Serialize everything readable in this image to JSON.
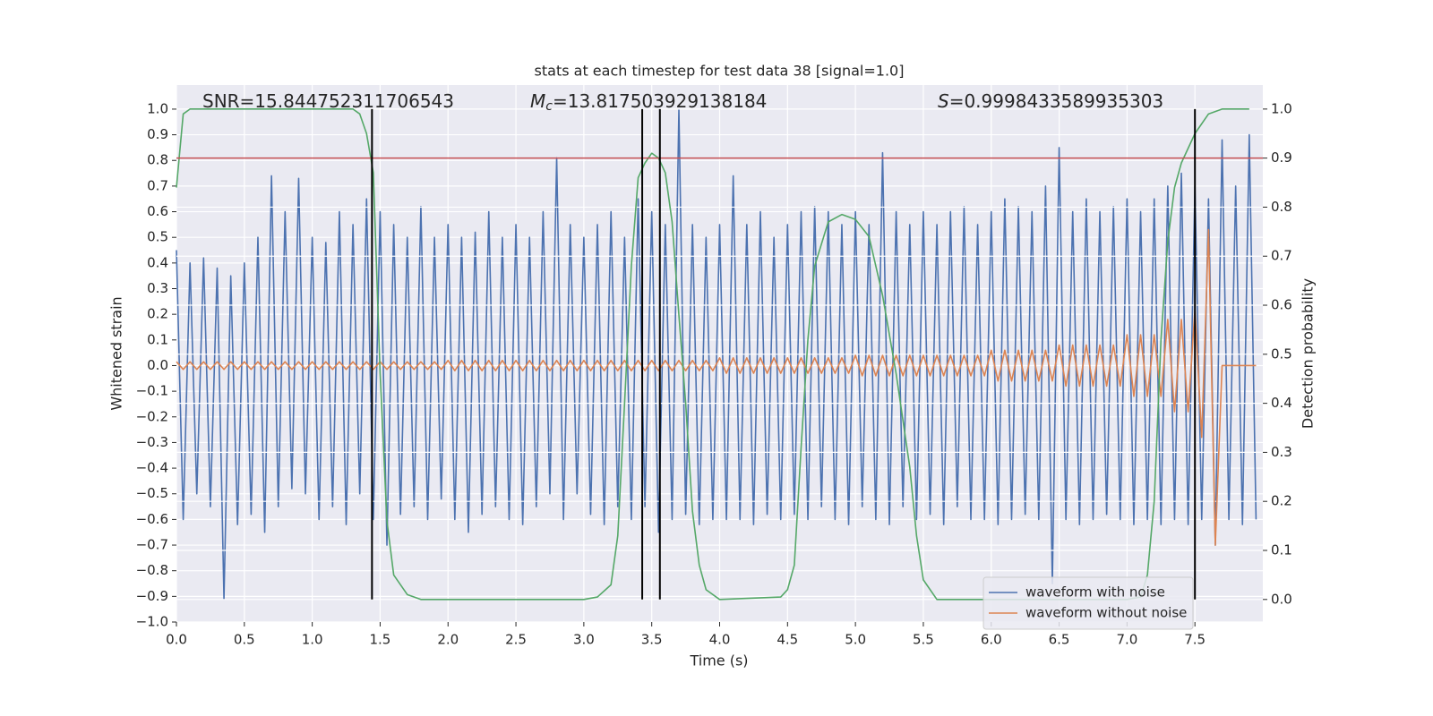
{
  "chart_data": {
    "type": "line",
    "title": "stats at each timestep for test data 38 [signal=1.0]",
    "xlabel": "Time (s)",
    "ylabel": "Whitened strain",
    "y2label": "Detection probability",
    "annotations": [
      {
        "text": "SNR=15.844752311706543"
      },
      {
        "symbol": "M",
        "subscript": "c",
        "text": "=13.817503929138184"
      },
      {
        "symbol": "S",
        "text": "=0.9998433589935303"
      }
    ],
    "xlim": [
      0,
      8
    ],
    "ylim": [
      -1,
      1.094
    ],
    "y2lim": [
      -0.046,
      1.049
    ],
    "xticks": [
      {
        "value": 0,
        "label": "0.0"
      },
      0.5,
      {
        "value": 1,
        "label": "1.0"
      },
      1.5,
      {
        "value": 2,
        "label": "2.0"
      },
      2.5,
      {
        "value": 3,
        "label": "3.0"
      },
      3.5,
      {
        "value": 4,
        "label": "4.0"
      },
      4.5,
      {
        "value": 5,
        "label": "5.0"
      },
      5.5,
      {
        "value": 6,
        "label": "6.0"
      },
      6.5,
      {
        "value": 7,
        "label": "7.0"
      },
      7.5
    ],
    "yticks": [
      {
        "value": -1,
        "label": "−1.0"
      },
      {
        "value": -0.9,
        "label": "−0.9"
      },
      {
        "value": -0.8,
        "label": "−0.8"
      },
      {
        "value": -0.7,
        "label": "−0.7"
      },
      {
        "value": -0.6,
        "label": "−0.6"
      },
      {
        "value": -0.5,
        "label": "−0.5"
      },
      {
        "value": -0.4,
        "label": "−0.4"
      },
      {
        "value": -0.3,
        "label": "−0.3"
      },
      {
        "value": -0.2,
        "label": "−0.2"
      },
      {
        "value": -0.1,
        "label": "−0.1"
      },
      {
        "value": 0,
        "label": "0.0"
      },
      0.1,
      0.2,
      0.3,
      0.4,
      0.5,
      0.6,
      0.7,
      0.8,
      0.9,
      {
        "value": 1,
        "label": "1.0"
      }
    ],
    "y2ticks": [
      {
        "value": 0,
        "label": "0.0"
      },
      0.1,
      0.2,
      0.3,
      0.4,
      0.5,
      0.6,
      0.7,
      0.8,
      0.9,
      {
        "value": 1,
        "label": "1.0"
      }
    ],
    "grid": true,
    "legend": "lower right",
    "x": [
      0,
      0.05,
      0.1,
      0.15,
      0.2,
      0.25,
      0.3,
      0.35,
      0.4,
      0.45,
      0.5,
      0.55,
      0.6,
      0.65,
      0.7,
      0.75,
      0.8,
      0.85,
      0.9,
      0.95,
      1,
      1.05,
      1.1,
      1.15,
      1.2,
      1.25,
      1.3,
      1.35,
      1.4,
      1.45,
      1.5,
      1.55,
      1.6,
      1.65,
      1.7,
      1.75,
      1.8,
      1.85,
      1.9,
      1.95,
      2,
      2.05,
      2.1,
      2.15,
      2.2,
      2.25,
      2.3,
      2.35,
      2.4,
      2.45,
      2.5,
      2.55,
      2.6,
      2.65,
      2.7,
      2.75,
      2.8,
      2.85,
      2.9,
      2.95,
      3,
      3.05,
      3.1,
      3.15,
      3.2,
      3.25,
      3.3,
      3.35,
      3.4,
      3.45,
      3.5,
      3.55,
      3.6,
      3.65,
      3.7,
      3.75,
      3.8,
      3.85,
      3.9,
      3.95,
      4,
      4.05,
      4.1,
      4.15,
      4.2,
      4.25,
      4.3,
      4.35,
      4.4,
      4.45,
      4.5,
      4.55,
      4.6,
      4.65,
      4.7,
      4.75,
      4.8,
      4.85,
      4.9,
      4.95,
      5,
      5.05,
      5.1,
      5.15,
      5.2,
      5.25,
      5.3,
      5.35,
      5.4,
      5.45,
      5.5,
      5.55,
      5.6,
      5.65,
      5.7,
      5.75,
      5.8,
      5.85,
      5.9,
      5.95,
      6,
      6.05,
      6.1,
      6.15,
      6.2,
      6.25,
      6.3,
      6.35,
      6.4,
      6.45,
      6.5,
      6.55,
      6.6,
      6.65,
      6.7,
      6.75,
      6.8,
      6.85,
      6.9,
      6.95,
      7,
      7.05,
      7.1,
      7.15,
      7.2,
      7.25,
      7.3,
      7.35,
      7.4,
      7.45,
      7.5,
      7.55,
      7.6,
      7.65,
      7.7,
      7.75,
      7.8,
      7.85,
      7.9,
      7.95
    ],
    "series": [
      {
        "name": "waveform with noise",
        "color": "#4c72b0",
        "values": [
          0.45,
          -0.6,
          0.4,
          -0.5,
          0.42,
          -0.55,
          0.38,
          -0.91,
          0.35,
          -0.62,
          0.4,
          -0.58,
          0.5,
          -0.65,
          0.74,
          -0.55,
          0.6,
          -0.48,
          0.73,
          -0.5,
          0.5,
          -0.6,
          0.48,
          -0.55,
          0.6,
          -0.62,
          0.55,
          -0.5,
          0.65,
          -0.6,
          0.6,
          -0.7,
          0.55,
          -0.58,
          0.5,
          -0.55,
          0.62,
          -0.6,
          0.5,
          -0.52,
          0.55,
          -0.6,
          0.5,
          -0.65,
          0.52,
          -0.58,
          0.6,
          -0.55,
          0.5,
          -0.6,
          0.55,
          -0.62,
          0.5,
          -0.55,
          0.6,
          -0.5,
          0.81,
          -0.6,
          0.55,
          -0.5,
          0.5,
          -0.58,
          0.55,
          -0.62,
          0.6,
          -0.55,
          0.5,
          -0.6,
          0.65,
          -0.55,
          0.6,
          -0.65,
          0.55,
          -0.6,
          1.0,
          -0.58,
          0.55,
          -0.62,
          0.5,
          -0.6,
          0.55,
          -0.6,
          0.74,
          -0.6,
          0.55,
          -0.62,
          0.6,
          -0.58,
          0.5,
          -0.6,
          0.55,
          -0.58,
          0.6,
          -0.6,
          0.62,
          -0.55,
          0.6,
          -0.6,
          0.55,
          -0.62,
          0.6,
          -0.55,
          0.55,
          -0.6,
          0.83,
          -0.62,
          0.6,
          -0.55,
          0.55,
          -0.6,
          0.6,
          -0.58,
          0.55,
          -0.62,
          0.6,
          -0.55,
          0.62,
          -0.6,
          0.55,
          -0.6,
          0.6,
          -0.62,
          0.65,
          -0.6,
          0.62,
          -0.58,
          0.6,
          -0.6,
          0.7,
          -0.85,
          0.85,
          -0.6,
          0.6,
          -0.62,
          0.65,
          -0.6,
          0.6,
          -0.58,
          0.62,
          -0.6,
          0.65,
          -0.62,
          0.6,
          -0.6,
          0.65,
          -0.62,
          0.7,
          -0.6,
          0.75,
          -0.62,
          0.7,
          -0.6,
          0.65,
          -0.7,
          0.88,
          -0.6,
          0.7,
          -0.62,
          0.9,
          -0.6
        ]
      },
      {
        "name": "waveform without noise",
        "color": "#dd8452",
        "values": [
          0.015,
          -0.015,
          0.015,
          -0.015,
          0.015,
          -0.015,
          0.015,
          -0.015,
          0.015,
          -0.015,
          0.015,
          -0.015,
          0.015,
          -0.015,
          0.015,
          -0.015,
          0.015,
          -0.015,
          0.015,
          -0.015,
          0.015,
          -0.015,
          0.015,
          -0.015,
          0.015,
          -0.015,
          0.015,
          -0.015,
          0.015,
          -0.015,
          0.015,
          -0.015,
          0.015,
          -0.015,
          0.015,
          -0.015,
          0.015,
          -0.015,
          0.015,
          -0.015,
          0.02,
          -0.02,
          0.02,
          -0.02,
          0.02,
          -0.02,
          0.02,
          -0.02,
          0.02,
          -0.02,
          0.02,
          -0.02,
          0.02,
          -0.02,
          0.02,
          -0.02,
          0.02,
          -0.02,
          0.02,
          -0.02,
          0.02,
          -0.02,
          0.02,
          -0.02,
          0.02,
          -0.02,
          0.02,
          -0.02,
          0.02,
          -0.02,
          0.02,
          -0.02,
          0.02,
          -0.02,
          0.02,
          -0.02,
          0.02,
          -0.02,
          0.02,
          -0.02,
          0.03,
          -0.03,
          0.03,
          -0.03,
          0.03,
          -0.03,
          0.03,
          -0.03,
          0.03,
          -0.03,
          0.03,
          -0.03,
          0.03,
          -0.03,
          0.03,
          -0.03,
          0.03,
          -0.03,
          0.03,
          -0.03,
          0.04,
          -0.04,
          0.04,
          -0.04,
          0.04,
          -0.04,
          0.04,
          -0.04,
          0.04,
          -0.04,
          0.04,
          -0.04,
          0.04,
          -0.04,
          0.04,
          -0.04,
          0.04,
          -0.04,
          0.04,
          -0.04,
          0.06,
          -0.06,
          0.06,
          -0.06,
          0.06,
          -0.06,
          0.06,
          -0.06,
          0.06,
          -0.06,
          0.08,
          -0.08,
          0.08,
          -0.08,
          0.08,
          -0.08,
          0.08,
          -0.08,
          0.08,
          -0.08,
          0.12,
          -0.12,
          0.12,
          -0.12,
          0.12,
          -0.12,
          0.18,
          -0.18,
          0.18,
          -0.18,
          0.22,
          -0.28,
          0.53,
          -0.7,
          0,
          0,
          0,
          0,
          0,
          0
        ]
      },
      {
        "color": "#55a868",
        "axis": "y2",
        "x": [
          0,
          0.05,
          0.1,
          0.2,
          0.4,
          0.6,
          0.8,
          1.0,
          1.2,
          1.3,
          1.35,
          1.4,
          1.45,
          1.5,
          1.55,
          1.6,
          1.7,
          1.8,
          2.0,
          2.5,
          3.0,
          3.1,
          3.2,
          3.25,
          3.3,
          3.35,
          3.4,
          3.45,
          3.5,
          3.55,
          3.6,
          3.65,
          3.7,
          3.75,
          3.8,
          3.85,
          3.9,
          4.0,
          4.45,
          4.5,
          4.55,
          4.6,
          4.65,
          4.7,
          4.8,
          4.9,
          5.0,
          5.1,
          5.2,
          5.3,
          5.4,
          5.45,
          5.5,
          5.6,
          6.0,
          7.0,
          7.1,
          7.15,
          7.2,
          7.25,
          7.3,
          7.35,
          7.4,
          7.5,
          7.6,
          7.7,
          7.9
        ],
        "values": [
          0.84,
          0.99,
          1.0,
          1.0,
          1.0,
          1.0,
          1.0,
          1.0,
          1.0,
          1.0,
          0.99,
          0.95,
          0.87,
          0.46,
          0.16,
          0.05,
          0.01,
          0.0,
          0.0,
          0.0,
          0.0,
          0.005,
          0.03,
          0.13,
          0.4,
          0.68,
          0.86,
          0.89,
          0.91,
          0.9,
          0.87,
          0.77,
          0.58,
          0.4,
          0.18,
          0.07,
          0.02,
          0.0,
          0.005,
          0.02,
          0.07,
          0.31,
          0.53,
          0.68,
          0.77,
          0.785,
          0.775,
          0.74,
          0.62,
          0.46,
          0.27,
          0.13,
          0.04,
          0.0,
          0.0,
          0.0,
          0.005,
          0.05,
          0.2,
          0.53,
          0.73,
          0.84,
          0.89,
          0.95,
          0.99,
          1.0,
          1.0
        ]
      }
    ],
    "hlines": [
      {
        "y2": 0.9,
        "color": "#c44e52"
      }
    ],
    "vlines": {
      "x": [
        1.44,
        3.43,
        3.56,
        7.5
      ],
      "y2min": 0,
      "y2max": 1,
      "color": "#000000"
    }
  }
}
